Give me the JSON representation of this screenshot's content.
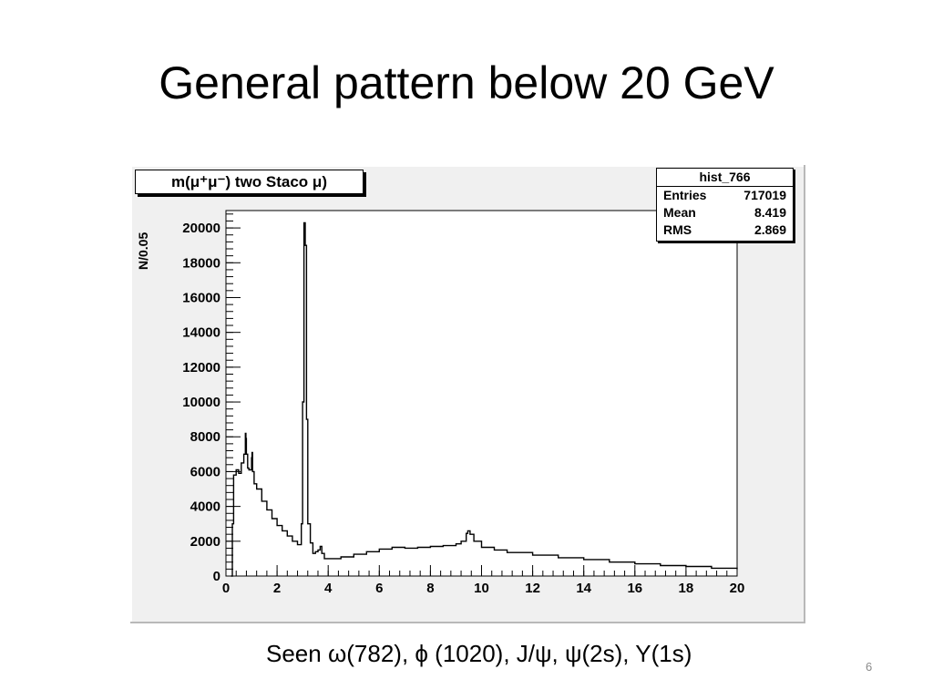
{
  "slide": {
    "title": "General pattern below  20 GeV",
    "caption": "Seen  ω(782), ϕ (1020), J/ψ, ψ(2s), Υ(1s)",
    "page_number": "6"
  },
  "chart_data": {
    "type": "line",
    "title": "m(μ⁺μ⁻) two Staco μ)",
    "xlabel": "",
    "ylabel": "N/0.05",
    "xlim": [
      0,
      20
    ],
    "ylim": [
      0,
      21000
    ],
    "x_ticks": [
      "0",
      "2",
      "4",
      "6",
      "8",
      "10",
      "12",
      "14",
      "16",
      "18",
      "20"
    ],
    "y_ticks": [
      "0",
      "2000",
      "4000",
      "6000",
      "8000",
      "10000",
      "12000",
      "14000",
      "16000",
      "18000",
      "20000"
    ],
    "grid": false,
    "stats": {
      "name": "hist_766",
      "rows": [
        {
          "label": "Entries",
          "value": "717019"
        },
        {
          "label": "Mean",
          "value": "8.419"
        },
        {
          "label": "RMS",
          "value": "2.869"
        }
      ]
    },
    "series": [
      {
        "x": [
          0.2,
          0.25,
          0.3,
          0.4,
          0.5,
          0.6,
          0.7,
          0.76,
          0.78,
          0.8,
          0.85,
          0.9,
          1.0,
          1.02,
          1.04,
          1.1,
          1.2,
          1.4,
          1.6,
          1.8,
          2.0,
          2.2,
          2.4,
          2.6,
          2.8,
          2.95,
          3.0,
          3.05,
          3.1,
          3.15,
          3.2,
          3.3,
          3.4,
          3.5,
          3.6,
          3.686,
          3.75,
          3.85,
          4.0,
          4.5,
          5.0,
          5.5,
          6.0,
          6.5,
          7.0,
          7.5,
          8.0,
          8.5,
          9.0,
          9.2,
          9.4,
          9.46,
          9.55,
          9.7,
          10.0,
          10.5,
          11.0,
          12.0,
          13.0,
          14.0,
          15.0,
          16.0,
          17.0,
          18.0,
          19.0,
          20.0
        ],
        "y": [
          0,
          3000,
          5800,
          6100,
          5900,
          6500,
          7000,
          8200,
          7900,
          7000,
          6200,
          6100,
          6800,
          7100,
          6000,
          5300,
          5000,
          4300,
          3800,
          3300,
          2900,
          2600,
          2300,
          2000,
          1800,
          3000,
          10000,
          20300,
          19000,
          9000,
          3000,
          1900,
          1300,
          1400,
          1500,
          1700,
          1300,
          1000,
          1000,
          1100,
          1250,
          1400,
          1550,
          1650,
          1600,
          1650,
          1700,
          1750,
          1850,
          2000,
          2450,
          2600,
          2400,
          2000,
          1650,
          1500,
          1350,
          1200,
          1050,
          950,
          800,
          700,
          600,
          550,
          450,
          400
        ]
      }
    ]
  }
}
